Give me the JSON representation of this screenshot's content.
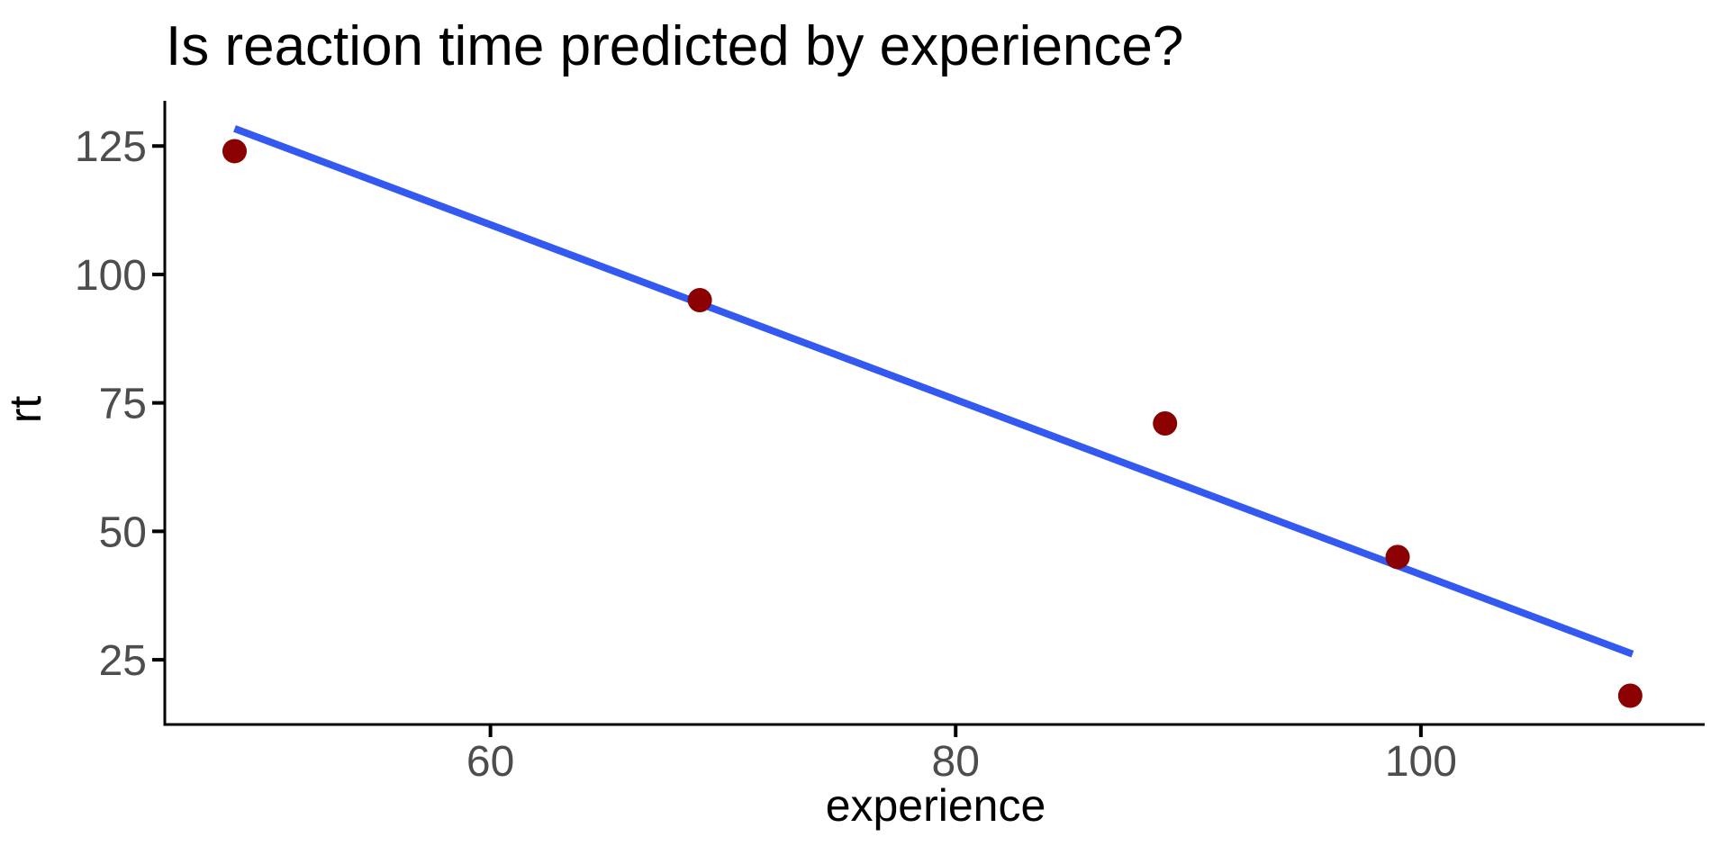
{
  "chart_data": {
    "type": "scatter",
    "title": "Is reaction time predicted by experience?",
    "xlabel": "experience",
    "ylabel": "rt",
    "points": [
      {
        "experience": 49,
        "rt": 124
      },
      {
        "experience": 69,
        "rt": 95
      },
      {
        "experience": 89,
        "rt": 71
      },
      {
        "experience": 99,
        "rt": 45
      },
      {
        "experience": 109,
        "rt": 18
      }
    ],
    "trend_line": {
      "description": "linear regression fit, no confidence band",
      "x1": 49,
      "y1": 128.4,
      "x2": 109.1,
      "y2": 26.1
    },
    "x_ticks": [
      60,
      80,
      100
    ],
    "y_ticks": [
      25,
      50,
      75,
      100,
      125
    ],
    "xlim": [
      46.0,
      112.2
    ],
    "ylim": [
      12.4,
      133.8
    ],
    "grid": false,
    "legend": false,
    "colors": {
      "point": "#8B0000",
      "trend": "#3359F0",
      "axis_text": "#4D4D4D",
      "axis_line": "#000000",
      "title_text": "#000000",
      "background": "#FFFFFF"
    }
  }
}
